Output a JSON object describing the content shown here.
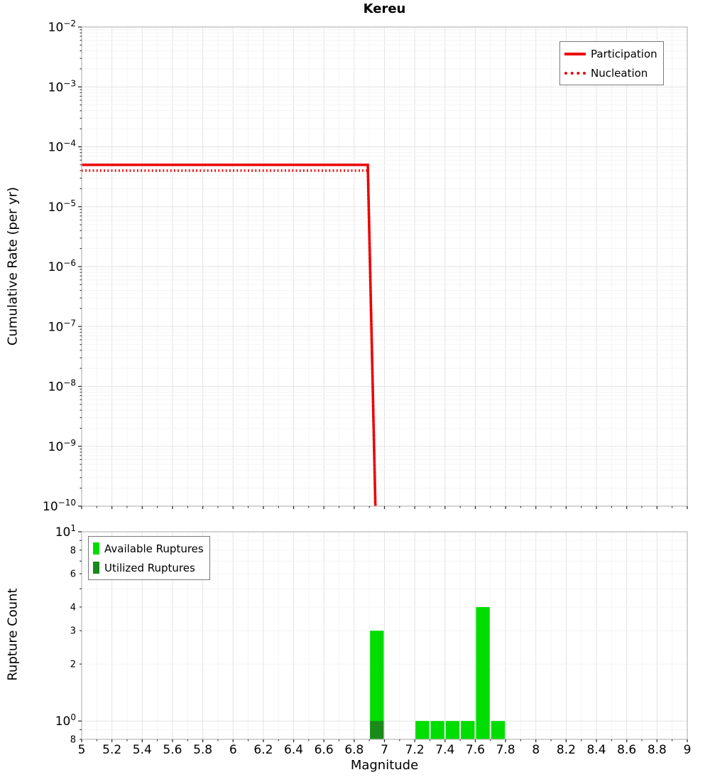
{
  "title": "Kereu",
  "xlabel": "Magnitude",
  "colors": {
    "line_red": "#ee0000",
    "available_green": "#00dd00",
    "utilized_green": "#1a8a1a",
    "grid_major": "#e3e3e3",
    "grid_minor": "#f4f4f4",
    "frame": "#b8b8b8",
    "tick": "#222222",
    "text": "#000000"
  },
  "x_axis": {
    "min": 5,
    "max": 9,
    "tick_step": 0.2,
    "tick_labels": [
      "5",
      "5.2",
      "5.4",
      "5.6",
      "5.8",
      "6",
      "6.2",
      "6.4",
      "6.6",
      "6.8",
      "7",
      "7.2",
      "7.4",
      "7.6",
      "7.8",
      "8",
      "8.2",
      "8.4",
      "8.6",
      "8.8",
      "9"
    ]
  },
  "chart_data": [
    {
      "type": "line",
      "title": "Kereu",
      "ylabel": "Cumulative Rate (per yr)",
      "y_scale": "log",
      "ylim": [
        1e-10,
        0.01
      ],
      "y_exponent_ticks": [
        -2,
        -3,
        -4,
        -5,
        -6,
        -7,
        -8,
        -9,
        -10
      ],
      "legend_position": "top-right",
      "legend": [
        {
          "label": "Participation",
          "style": "solid"
        },
        {
          "label": "Nucleation",
          "style": "dotted"
        }
      ],
      "series": [
        {
          "name": "Participation",
          "style": "solid",
          "points": [
            [
              5,
              5e-05
            ],
            [
              6.89,
              5e-05
            ],
            [
              6.94,
              1e-10
            ]
          ]
        },
        {
          "name": "Nucleation",
          "style": "dotted",
          "points": [
            [
              5,
              4e-05
            ],
            [
              6.89,
              4e-05
            ],
            [
              6.94,
              1e-10
            ]
          ]
        }
      ]
    },
    {
      "type": "bar",
      "ylabel": "Rupture Count",
      "y_scale": "log",
      "ylim": [
        0.8,
        10
      ],
      "y_ticks": [
        {
          "value": 10,
          "base": "10",
          "exp": "1",
          "major": true
        },
        {
          "value": 8,
          "label": "8"
        },
        {
          "value": 6,
          "label": "6"
        },
        {
          "value": 4,
          "label": "4"
        },
        {
          "value": 3,
          "label": "3"
        },
        {
          "value": 2,
          "label": "2"
        },
        {
          "value": 1,
          "base": "10",
          "exp": "0",
          "major": true
        },
        {
          "value": 0.8,
          "label": "8"
        }
      ],
      "legend_position": "top-left",
      "legend": [
        {
          "label": "Available Ruptures",
          "color_key": "available_green"
        },
        {
          "label": "Utilized Ruptures",
          "color_key": "utilized_green"
        }
      ],
      "bar_width": 0.1,
      "series": [
        {
          "name": "Available Ruptures",
          "color_key": "available_green",
          "centers": [
            6.95,
            7.25,
            7.35,
            7.45,
            7.55,
            7.65,
            7.75
          ],
          "counts": [
            3,
            1,
            1,
            1,
            1,
            4,
            1
          ]
        },
        {
          "name": "Utilized Ruptures",
          "color_key": "utilized_green",
          "centers": [
            6.95
          ],
          "counts": [
            1
          ]
        }
      ]
    }
  ]
}
